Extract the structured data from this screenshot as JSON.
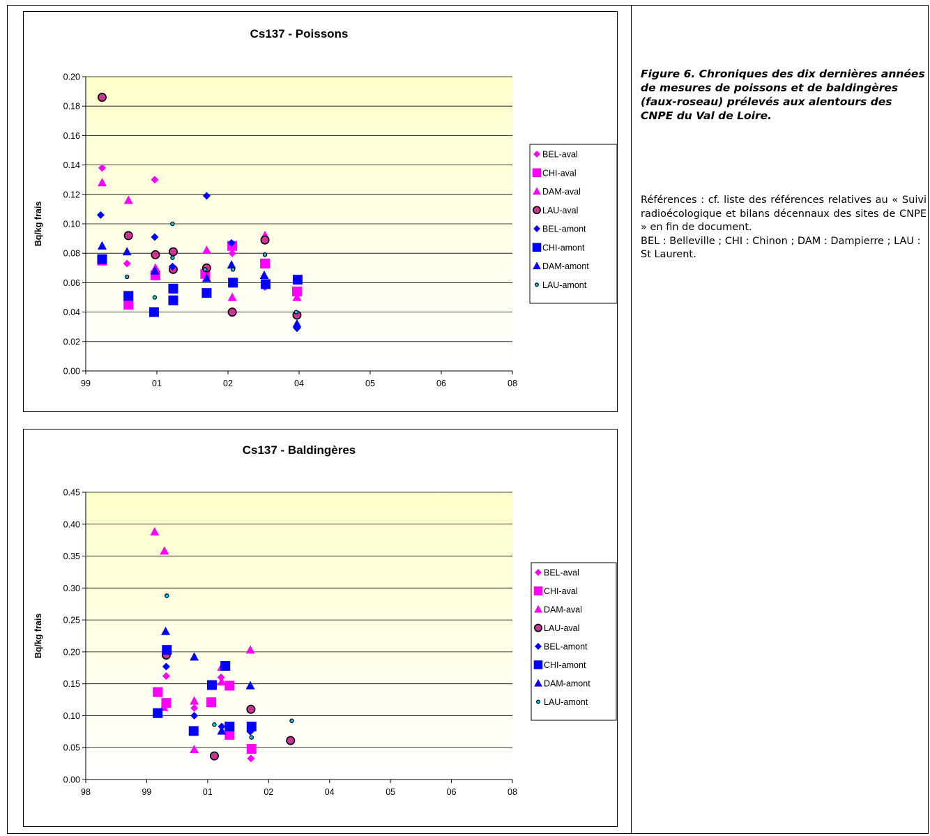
{
  "caption": "Figure 6. Chroniques des dix dernières années de mesures de poissons et de baldingères (faux-roseau) prélevés aux alentours des CNPE du Val de Loire.",
  "references": "Références : cf. liste des références relatives au « Suivi radioécologique et bilans décennaux des sites de CNPE » en fin de document.",
  "abbreviations": "BEL : Belleville ; CHI : Chinon ; DAM : Dampierre ; LAU : St Laurent.",
  "legend": [
    {
      "name": "BEL-aval",
      "color": "#ff00ff",
      "marker": "diamond"
    },
    {
      "name": "CHI-aval",
      "color": "#ff00ff",
      "marker": "square"
    },
    {
      "name": "DAM-aval",
      "color": "#ff00ff",
      "marker": "triangle"
    },
    {
      "name": "LAU-aval",
      "color": "#cc3399",
      "marker": "circle-outlined"
    },
    {
      "name": "BEL-amont",
      "color": "#0000ff",
      "marker": "diamond"
    },
    {
      "name": "CHI-amont",
      "color": "#0000ff",
      "marker": "square"
    },
    {
      "name": "DAM-amont",
      "color": "#0000ff",
      "marker": "triangle"
    },
    {
      "name": "LAU-amont",
      "color": "#00ccff",
      "marker": "dot-outlined"
    }
  ],
  "chart_data": [
    {
      "type": "scatter",
      "title": "Cs137 - Poissons",
      "ylabel": "Bq/kg frais",
      "xlabel": "",
      "x_ticks": [
        "99",
        "01",
        "02",
        "04",
        "05",
        "06",
        "08"
      ],
      "x_tick_positions": [
        0,
        1,
        2,
        3,
        4,
        5,
        6
      ],
      "xlim": [
        0,
        6
      ],
      "ylim": [
        0,
        0.2
      ],
      "y_ticks": [
        "0.00",
        "0.02",
        "0.04",
        "0.06",
        "0.08",
        "0.10",
        "0.12",
        "0.14",
        "0.16",
        "0.18",
        "0.20"
      ],
      "grid": true,
      "legend_position": "right",
      "series": [
        {
          "name": "BEL-aval",
          "points": [
            [
              0.23,
              0.138
            ],
            [
              0.58,
              0.073
            ],
            [
              0.97,
              0.13
            ],
            [
              1.23,
              0.055
            ],
            [
              1.68,
              0.066
            ],
            [
              2.06,
              0.08
            ],
            [
              2.52,
              0.057
            ],
            [
              2.97,
              0.03
            ]
          ]
        },
        {
          "name": "CHI-aval",
          "points": [
            [
              0.23,
              0.075
            ],
            [
              0.6,
              0.045
            ],
            [
              0.98,
              0.065
            ],
            [
              1.68,
              0.066
            ],
            [
              2.06,
              0.085
            ],
            [
              2.52,
              0.073
            ],
            [
              2.97,
              0.054
            ]
          ]
        },
        {
          "name": "DAM-aval",
          "points": [
            [
              0.23,
              0.128
            ],
            [
              0.6,
              0.116
            ],
            [
              0.98,
              0.07
            ],
            [
              1.23,
              0.055
            ],
            [
              1.7,
              0.082
            ],
            [
              2.06,
              0.05
            ],
            [
              2.52,
              0.092
            ],
            [
              2.97,
              0.05
            ]
          ]
        },
        {
          "name": "LAU-aval",
          "points": [
            [
              0.23,
              0.186
            ],
            [
              0.6,
              0.092
            ],
            [
              0.98,
              0.079
            ],
            [
              1.23,
              0.069
            ],
            [
              1.23,
              0.081
            ],
            [
              1.7,
              0.07
            ],
            [
              2.06,
              0.04
            ],
            [
              2.52,
              0.089
            ],
            [
              2.97,
              0.038
            ]
          ]
        },
        {
          "name": "BEL-amont",
          "points": [
            [
              0.21,
              0.106
            ],
            [
              0.58,
              0.051
            ],
            [
              0.97,
              0.091
            ],
            [
              1.22,
              0.071
            ],
            [
              1.7,
              0.119
            ],
            [
              2.05,
              0.087
            ],
            [
              2.52,
              0.059
            ],
            [
              2.97,
              0.029
            ]
          ]
        },
        {
          "name": "CHI-amont",
          "points": [
            [
              0.23,
              0.076
            ],
            [
              0.6,
              0.051
            ],
            [
              0.96,
              0.04
            ],
            [
              1.23,
              0.056
            ],
            [
              1.23,
              0.048
            ],
            [
              1.7,
              0.053
            ],
            [
              2.07,
              0.06
            ],
            [
              2.53,
              0.059
            ],
            [
              2.98,
              0.062
            ]
          ]
        },
        {
          "name": "DAM-amont",
          "points": [
            [
              0.23,
              0.085
            ],
            [
              0.58,
              0.081
            ],
            [
              0.97,
              0.068
            ],
            [
              1.7,
              0.063
            ],
            [
              2.05,
              0.072
            ],
            [
              2.51,
              0.065
            ],
            [
              2.97,
              0.032
            ]
          ]
        },
        {
          "name": "LAU-amont",
          "points": [
            [
              0.58,
              0.064
            ],
            [
              0.97,
              0.05
            ],
            [
              1.22,
              0.1
            ],
            [
              1.22,
              0.077
            ],
            [
              1.68,
              0.069
            ],
            [
              2.07,
              0.069
            ],
            [
              2.52,
              0.079
            ],
            [
              2.96,
              0.04
            ]
          ]
        }
      ]
    },
    {
      "type": "scatter",
      "title": "Cs137 - Baldingères",
      "ylabel": "Bq/kg frais",
      "xlabel": "",
      "x_ticks": [
        "98",
        "99",
        "01",
        "02",
        "04",
        "05",
        "06",
        "08"
      ],
      "x_tick_positions": [
        0,
        1,
        2,
        3,
        4,
        5,
        6,
        7
      ],
      "xlim": [
        0,
        7
      ],
      "ylim": [
        0,
        0.45
      ],
      "y_ticks": [
        "0.00",
        "0.05",
        "0.10",
        "0.15",
        "0.20",
        "0.25",
        "0.30",
        "0.35",
        "0.40",
        "0.45"
      ],
      "grid": true,
      "legend_position": "right",
      "series": [
        {
          "name": "BEL-aval",
          "points": [
            [
              1.32,
              0.162
            ],
            [
              1.78,
              0.112
            ],
            [
              2.22,
              0.16
            ],
            [
              2.71,
              0.033
            ]
          ]
        },
        {
          "name": "CHI-aval",
          "points": [
            [
              1.18,
              0.137
            ],
            [
              1.32,
              0.12
            ],
            [
              2.06,
              0.121
            ],
            [
              2.36,
              0.147
            ],
            [
              2.36,
              0.07
            ],
            [
              2.72,
              0.048
            ]
          ]
        },
        {
          "name": "DAM-aval",
          "points": [
            [
              1.13,
              0.388
            ],
            [
              1.29,
              0.358
            ],
            [
              1.28,
              0.113
            ],
            [
              1.78,
              0.123
            ],
            [
              1.78,
              0.047
            ],
            [
              2.23,
              0.176
            ],
            [
              2.23,
              0.153
            ],
            [
              2.7,
              0.203
            ]
          ]
        },
        {
          "name": "LAU-aval",
          "points": [
            [
              1.32,
              0.195
            ],
            [
              2.11,
              0.037
            ],
            [
              2.71,
              0.11
            ],
            [
              3.36,
              0.061
            ]
          ]
        },
        {
          "name": "BEL-amont",
          "points": [
            [
              1.32,
              0.177
            ],
            [
              1.78,
              0.1
            ],
            [
              2.23,
              0.083
            ],
            [
              2.7,
              0.075
            ]
          ]
        },
        {
          "name": "CHI-amont",
          "points": [
            [
              1.18,
              0.104
            ],
            [
              1.33,
              0.203
            ],
            [
              1.77,
              0.076
            ],
            [
              2.07,
              0.148
            ],
            [
              2.29,
              0.178
            ],
            [
              2.36,
              0.083
            ],
            [
              2.72,
              0.083
            ]
          ]
        },
        {
          "name": "DAM-amont",
          "points": [
            [
              1.31,
              0.232
            ],
            [
              1.78,
              0.192
            ],
            [
              2.23,
              0.076
            ],
            [
              2.7,
              0.147
            ]
          ]
        },
        {
          "name": "LAU-amont",
          "points": [
            [
              1.33,
              0.288
            ],
            [
              2.11,
              0.086
            ],
            [
              2.72,
              0.066
            ],
            [
              3.38,
              0.092
            ]
          ]
        }
      ]
    }
  ]
}
